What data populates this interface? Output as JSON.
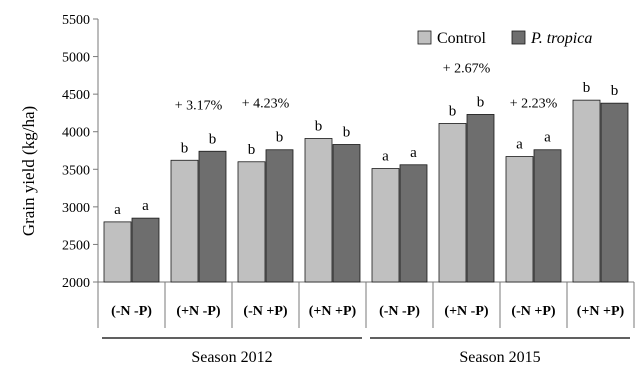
{
  "chart_data": {
    "type": "bar",
    "ylabel": "Grain yield (kg/ha)",
    "ylim": [
      2000,
      5500
    ],
    "yticks": [
      2000,
      2500,
      3000,
      3500,
      4000,
      4500,
      5000,
      5500
    ],
    "grid": false,
    "legend_position": "top-right",
    "categories": [
      "(-N -P)",
      "(+N -P)",
      "(-N +P)",
      "(+N +P)",
      "(-N -P)",
      "(+N -P)",
      "(-N +P)",
      "(+N +P)"
    ],
    "groups": [
      {
        "label": "Season 2012",
        "categories": [
          0,
          1,
          2,
          3
        ]
      },
      {
        "label": "Season 2015",
        "categories": [
          4,
          5,
          6,
          7
        ]
      }
    ],
    "series": [
      {
        "name": "Control",
        "color": "#c0c0c0",
        "values": [
          2800,
          3620,
          3600,
          3910,
          3510,
          4110,
          3670,
          4420
        ],
        "letters": [
          "a",
          "b",
          "b",
          "b",
          "a",
          "b",
          "a",
          "b"
        ]
      },
      {
        "name": "P. tropica",
        "name_italic": true,
        "color": "#6e6e6e",
        "values": [
          2850,
          3740,
          3760,
          3830,
          3560,
          4230,
          3760,
          4380
        ],
        "letters": [
          "a",
          "b",
          "b",
          "b",
          "a",
          "b",
          "a",
          "b"
        ]
      }
    ],
    "annotations": [
      {
        "text": "+ 3.17%",
        "category": 1
      },
      {
        "text": "+ 4.23%",
        "category": 2
      },
      {
        "text": "+ 2.67%",
        "category": 5
      },
      {
        "text": "+ 2.23%",
        "category": 6
      }
    ]
  }
}
